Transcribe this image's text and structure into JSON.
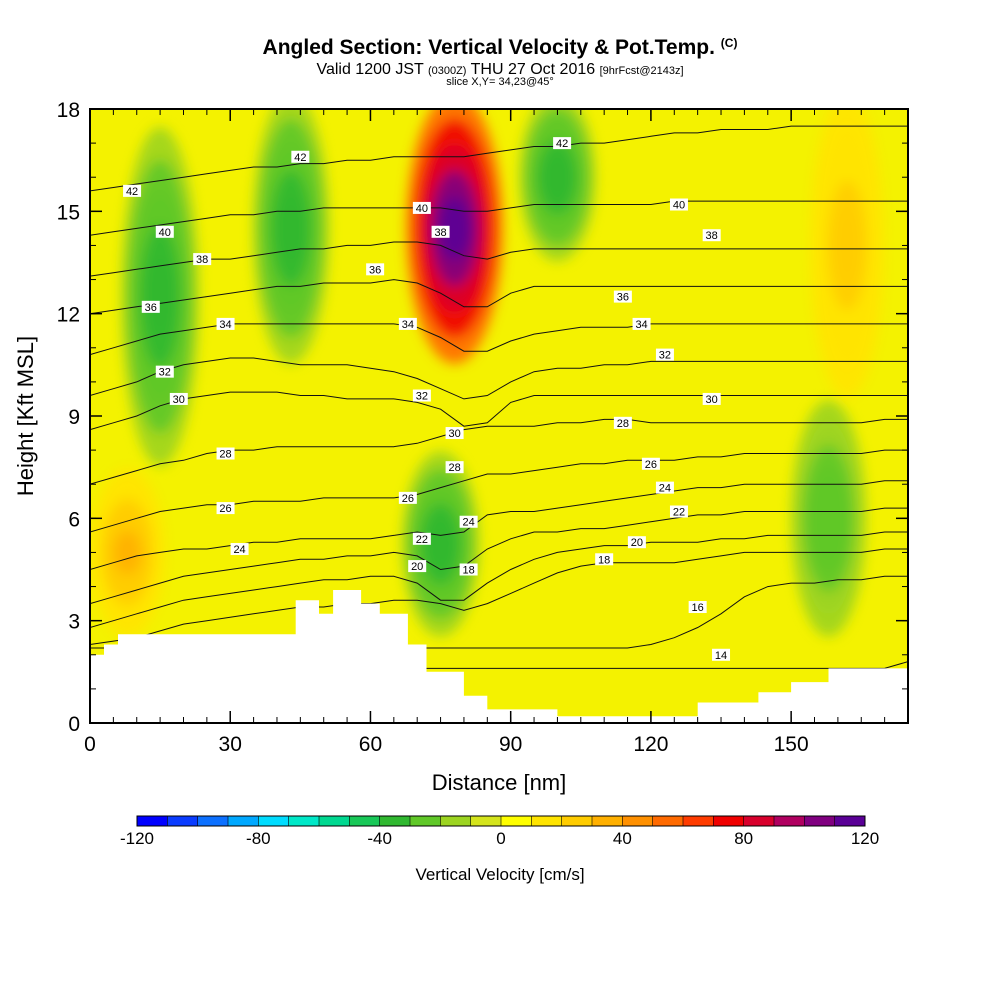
{
  "title": {
    "main": "Angled Section: Vertical Velocity & Pot.Temp.",
    "units": "(C)",
    "valid": "Valid 1200 JST",
    "zulu": "(0300Z)",
    "date": "THU 27 Oct 2016",
    "fcst": "[9hrFcst@2143z]",
    "slice": "slice X,Y= 34,23@45°"
  },
  "chart_data": {
    "type": "heatmap",
    "xlabel": "Distance [nm]",
    "ylabel": "Height [Kft MSL]",
    "xlim": [
      0,
      175
    ],
    "ylim": [
      0,
      18
    ],
    "x_ticks": [
      0,
      30,
      60,
      90,
      120,
      150
    ],
    "y_ticks": [
      0,
      3,
      6,
      9,
      12,
      15,
      18
    ],
    "colorbar": {
      "label": "Vertical Velocity [cm/s]",
      "range": [
        -120,
        120
      ],
      "ticks": [
        -120,
        -80,
        -40,
        0,
        40,
        80,
        120
      ],
      "colors": [
        "#0000ff",
        "#0a3cff",
        "#0c70ff",
        "#00a8ff",
        "#00dcff",
        "#00e8c8",
        "#00d890",
        "#18c858",
        "#30b830",
        "#60c828",
        "#9cd420",
        "#d4e41c",
        "#ffff00",
        "#ffe400",
        "#ffcc00",
        "#ffb000",
        "#ff9000",
        "#ff6a00",
        "#ff3c00",
        "#f00000",
        "#d8002c",
        "#b00060",
        "#800080",
        "#5a0096"
      ]
    },
    "vertical_velocity_features": [
      {
        "x": 78,
        "y_range": [
          11,
          18
        ],
        "peak": 120,
        "kind": "updraft"
      },
      {
        "x": 15,
        "y_range": [
          8,
          17
        ],
        "peak": -40,
        "kind": "downdraft"
      },
      {
        "x": 43,
        "y_range": [
          11,
          18
        ],
        "peak": -35,
        "kind": "downdraft"
      },
      {
        "x": 75,
        "y_range": [
          3,
          7.5
        ],
        "peak": -40,
        "kind": "downdraft"
      },
      {
        "x": 100,
        "y_range": [
          14,
          18
        ],
        "peak": -35,
        "kind": "downdraft"
      },
      {
        "x": 158,
        "y_range": [
          3,
          9
        ],
        "peak": -30,
        "kind": "downdraft"
      },
      {
        "x": 8,
        "y_range": [
          3,
          7
        ],
        "peak": 30,
        "kind": "updraft"
      },
      {
        "x": 162,
        "y_range": [
          10,
          18
        ],
        "peak": 25,
        "kind": "updraft"
      }
    ],
    "terrain": {
      "x": [
        0,
        3,
        3,
        6,
        6,
        44,
        44,
        49,
        49,
        52,
        52,
        58,
        58,
        62,
        62,
        68,
        68,
        72,
        72,
        80,
        80,
        85,
        85,
        100,
        100,
        130,
        130,
        143,
        143,
        150,
        150,
        158,
        158,
        175
      ],
      "y": [
        2,
        2,
        2.3,
        2.3,
        2.6,
        2.6,
        3.6,
        3.6,
        3.2,
        3.2,
        3.9,
        3.9,
        3.5,
        3.5,
        3.2,
        3.2,
        2.3,
        2.3,
        1.5,
        1.5,
        0.8,
        0.8,
        0.4,
        0.4,
        0.2,
        0.2,
        0.6,
        0.6,
        0.9,
        0.9,
        1.2,
        1.2,
        1.6,
        1.6
      ]
    },
    "isentropes": [
      {
        "label": "14",
        "y": [
          1.6,
          1.6,
          1.6,
          1.6,
          1.6,
          1.6,
          1.6,
          1.6,
          1.6,
          1.6,
          1.6,
          1.6,
          1.6,
          1.6,
          1.6,
          1.6,
          1.6,
          1.6,
          1.6,
          1.6,
          1.6,
          1.6,
          1.6,
          1.6,
          1.6,
          1.6,
          1.6,
          1.6,
          1.6,
          1.6,
          1.6,
          1.6,
          1.6,
          1.6,
          1.6,
          1.8
        ]
      },
      {
        "label": "16",
        "y": [
          2.2,
          2.2,
          2.2,
          2.2,
          2.2,
          2.2,
          2.2,
          2.2,
          2.2,
          2.2,
          2.2,
          2.2,
          2.2,
          2.2,
          2.2,
          2.2,
          2.2,
          2.2,
          2.2,
          2.2,
          2.2,
          2.2,
          2.2,
          2.2,
          2.3,
          2.5,
          2.8,
          3.2,
          3.7,
          4.0,
          4.1,
          4.1,
          4.2,
          4.2,
          4.3,
          4.3
        ]
      },
      {
        "label": "18",
        "y": [
          2.3,
          2.4,
          2.5,
          2.7,
          2.9,
          3.0,
          3.1,
          3.2,
          3.3,
          3.4,
          3.4,
          3.5,
          3.5,
          3.6,
          3.6,
          3.5,
          3.3,
          3.5,
          3.8,
          4.1,
          4.4,
          4.6,
          4.7,
          4.7,
          4.7,
          4.7,
          4.8,
          4.9,
          5.0,
          5.0,
          5.0,
          5.0,
          5.0,
          5.0,
          5.1,
          5.1
        ]
      },
      {
        "label": "20",
        "y": [
          2.8,
          3.0,
          3.2,
          3.4,
          3.6,
          3.7,
          3.8,
          3.9,
          4.0,
          4.1,
          4.2,
          4.2,
          4.3,
          4.3,
          4.1,
          3.6,
          3.6,
          4.1,
          4.5,
          4.8,
          5.0,
          5.1,
          5.2,
          5.2,
          5.3,
          5.3,
          5.3,
          5.4,
          5.4,
          5.5,
          5.5,
          5.5,
          5.5,
          5.5,
          5.6,
          5.6
        ]
      },
      {
        "label": "22",
        "y": [
          3.5,
          3.7,
          3.9,
          4.1,
          4.3,
          4.4,
          4.5,
          4.6,
          4.7,
          4.8,
          4.8,
          4.9,
          4.9,
          5.0,
          4.9,
          4.5,
          4.6,
          5.1,
          5.4,
          5.6,
          5.6,
          5.7,
          5.7,
          5.8,
          5.9,
          6.0,
          6.1,
          6.1,
          6.2,
          6.2,
          6.2,
          6.2,
          6.2,
          6.2,
          6.3,
          6.3
        ]
      },
      {
        "label": "24",
        "y": [
          4.5,
          4.7,
          4.9,
          5.0,
          5.1,
          5.1,
          5.2,
          5.3,
          5.3,
          5.4,
          5.4,
          5.4,
          5.4,
          5.5,
          5.6,
          5.5,
          5.6,
          6.1,
          6.2,
          6.2,
          6.3,
          6.4,
          6.5,
          6.6,
          6.7,
          6.8,
          6.9,
          6.9,
          7.0,
          7.0,
          7.0,
          7.0,
          7.0,
          7.0,
          7.1,
          7.1
        ]
      },
      {
        "label": "26",
        "y": [
          5.6,
          5.8,
          6.0,
          6.2,
          6.3,
          6.4,
          6.4,
          6.5,
          6.5,
          6.5,
          6.6,
          6.6,
          6.6,
          6.6,
          6.7,
          6.9,
          7.1,
          7.3,
          7.3,
          7.4,
          7.5,
          7.6,
          7.6,
          7.7,
          7.7,
          7.7,
          7.8,
          7.8,
          7.9,
          7.9,
          7.9,
          7.9,
          7.9,
          7.9,
          8.0,
          8.0
        ]
      },
      {
        "label": "28",
        "y": [
          7.0,
          7.2,
          7.4,
          7.6,
          7.7,
          7.9,
          8.0,
          8.0,
          8.1,
          8.1,
          8.1,
          8.1,
          8.1,
          8.1,
          8.2,
          8.4,
          8.6,
          8.7,
          8.7,
          8.7,
          8.8,
          8.8,
          8.9,
          8.9,
          8.8,
          8.8,
          8.8,
          8.8,
          8.8,
          8.8,
          8.8,
          8.8,
          8.8,
          8.8,
          8.9,
          8.9
        ]
      },
      {
        "label": "30",
        "y": [
          8.6,
          8.8,
          9.0,
          9.3,
          9.5,
          9.6,
          9.7,
          9.7,
          9.7,
          9.6,
          9.6,
          9.5,
          9.5,
          9.5,
          9.4,
          9.2,
          8.7,
          8.8,
          9.4,
          9.6,
          9.6,
          9.6,
          9.6,
          9.6,
          9.6,
          9.6,
          9.6,
          9.6,
          9.6,
          9.6,
          9.6,
          9.6,
          9.6,
          9.6,
          9.6,
          9.6
        ]
      },
      {
        "label": "32",
        "y": [
          9.6,
          9.8,
          10.0,
          10.3,
          10.5,
          10.6,
          10.7,
          10.7,
          10.6,
          10.5,
          10.5,
          10.5,
          10.4,
          10.3,
          10.1,
          9.8,
          9.5,
          9.6,
          10.0,
          10.3,
          10.4,
          10.4,
          10.5,
          10.5,
          10.6,
          10.6,
          10.6,
          10.6,
          10.6,
          10.6,
          10.6,
          10.6,
          10.6,
          10.6,
          10.6,
          10.6
        ]
      },
      {
        "label": "34",
        "y": [
          10.8,
          11.0,
          11.2,
          11.4,
          11.5,
          11.6,
          11.7,
          11.7,
          11.7,
          11.7,
          11.7,
          11.7,
          11.7,
          11.7,
          11.6,
          11.3,
          10.9,
          10.9,
          11.2,
          11.4,
          11.5,
          11.6,
          11.6,
          11.6,
          11.7,
          11.7,
          11.7,
          11.7,
          11.7,
          11.7,
          11.7,
          11.7,
          11.7,
          11.7,
          11.7,
          11.7
        ]
      },
      {
        "label": "36",
        "y": [
          12.0,
          12.1,
          12.2,
          12.3,
          12.4,
          12.5,
          12.6,
          12.7,
          12.8,
          12.8,
          12.9,
          12.9,
          12.9,
          13.0,
          12.9,
          12.6,
          12.2,
          12.2,
          12.6,
          12.8,
          12.8,
          12.8,
          12.8,
          12.8,
          12.8,
          12.8,
          12.8,
          12.8,
          12.8,
          12.8,
          12.8,
          12.8,
          12.8,
          12.8,
          12.8,
          12.8
        ]
      },
      {
        "label": "38",
        "y": [
          13.1,
          13.2,
          13.3,
          13.4,
          13.5,
          13.6,
          13.6,
          13.7,
          13.8,
          13.9,
          13.9,
          14.0,
          14.0,
          14.1,
          14.1,
          14.0,
          13.7,
          13.6,
          13.8,
          13.9,
          13.9,
          13.9,
          13.9,
          13.9,
          13.9,
          13.9,
          13.9,
          13.9,
          13.9,
          13.9,
          13.9,
          13.9,
          13.9,
          13.9,
          13.9,
          13.9
        ]
      },
      {
        "label": "40",
        "y": [
          14.3,
          14.4,
          14.5,
          14.6,
          14.7,
          14.8,
          14.9,
          14.9,
          15.0,
          15.0,
          15.1,
          15.1,
          15.1,
          15.1,
          15.1,
          15.1,
          15.0,
          15.0,
          15.1,
          15.2,
          15.2,
          15.2,
          15.2,
          15.2,
          15.2,
          15.3,
          15.3,
          15.3,
          15.3,
          15.3,
          15.3,
          15.3,
          15.3,
          15.3,
          15.3,
          15.3
        ]
      },
      {
        "label": "42",
        "y": [
          15.6,
          15.7,
          15.8,
          15.9,
          16.0,
          16.1,
          16.2,
          16.3,
          16.3,
          16.4,
          16.4,
          16.5,
          16.5,
          16.6,
          16.6,
          16.6,
          16.6,
          16.7,
          16.8,
          16.9,
          16.9,
          17.0,
          17.0,
          17.1,
          17.2,
          17.3,
          17.3,
          17.4,
          17.4,
          17.4,
          17.5,
          17.5,
          17.5,
          17.5,
          17.5,
          17.5
        ]
      }
    ],
    "isentrope_x_step": 5,
    "contour_labels": [
      {
        "t": "42",
        "x": 9,
        "y": 15.6
      },
      {
        "t": "42",
        "x": 45,
        "y": 16.6
      },
      {
        "t": "42",
        "x": 101,
        "y": 17.0
      },
      {
        "t": "40",
        "x": 16,
        "y": 14.4
      },
      {
        "t": "40",
        "x": 71,
        "y": 15.1
      },
      {
        "t": "40",
        "x": 126,
        "y": 15.2
      },
      {
        "t": "38",
        "x": 24,
        "y": 13.6
      },
      {
        "t": "38",
        "x": 75,
        "y": 14.4
      },
      {
        "t": "38",
        "x": 133,
        "y": 14.3
      },
      {
        "t": "36",
        "x": 13,
        "y": 12.2
      },
      {
        "t": "36",
        "x": 61,
        "y": 13.3
      },
      {
        "t": "36",
        "x": 114,
        "y": 12.5
      },
      {
        "t": "34",
        "x": 29,
        "y": 11.7
      },
      {
        "t": "34",
        "x": 68,
        "y": 11.7
      },
      {
        "t": "34",
        "x": 118,
        "y": 11.7
      },
      {
        "t": "32",
        "x": 16,
        "y": 10.3
      },
      {
        "t": "32",
        "x": 71,
        "y": 9.6
      },
      {
        "t": "32",
        "x": 123,
        "y": 10.8
      },
      {
        "t": "30",
        "x": 19,
        "y": 9.5
      },
      {
        "t": "30",
        "x": 78,
        "y": 8.5
      },
      {
        "t": "30",
        "x": 133,
        "y": 9.5
      },
      {
        "t": "28",
        "x": 29,
        "y": 7.9
      },
      {
        "t": "28",
        "x": 78,
        "y": 7.5
      },
      {
        "t": "28",
        "x": 114,
        "y": 8.8
      },
      {
        "t": "26",
        "x": 29,
        "y": 6.3
      },
      {
        "t": "26",
        "x": 68,
        "y": 6.6
      },
      {
        "t": "26",
        "x": 120,
        "y": 7.6
      },
      {
        "t": "24",
        "x": 32,
        "y": 5.1
      },
      {
        "t": "24",
        "x": 81,
        "y": 5.9
      },
      {
        "t": "24",
        "x": 123,
        "y": 6.9
      },
      {
        "t": "22",
        "x": 71,
        "y": 5.4
      },
      {
        "t": "22",
        "x": 126,
        "y": 6.2
      },
      {
        "t": "20",
        "x": 70,
        "y": 4.6
      },
      {
        "t": "20",
        "x": 117,
        "y": 5.3
      },
      {
        "t": "18",
        "x": 81,
        "y": 4.5
      },
      {
        "t": "18",
        "x": 110,
        "y": 4.8
      },
      {
        "t": "16",
        "x": 130,
        "y": 3.4
      },
      {
        "t": "14",
        "x": 135,
        "y": 2.0
      }
    ]
  }
}
